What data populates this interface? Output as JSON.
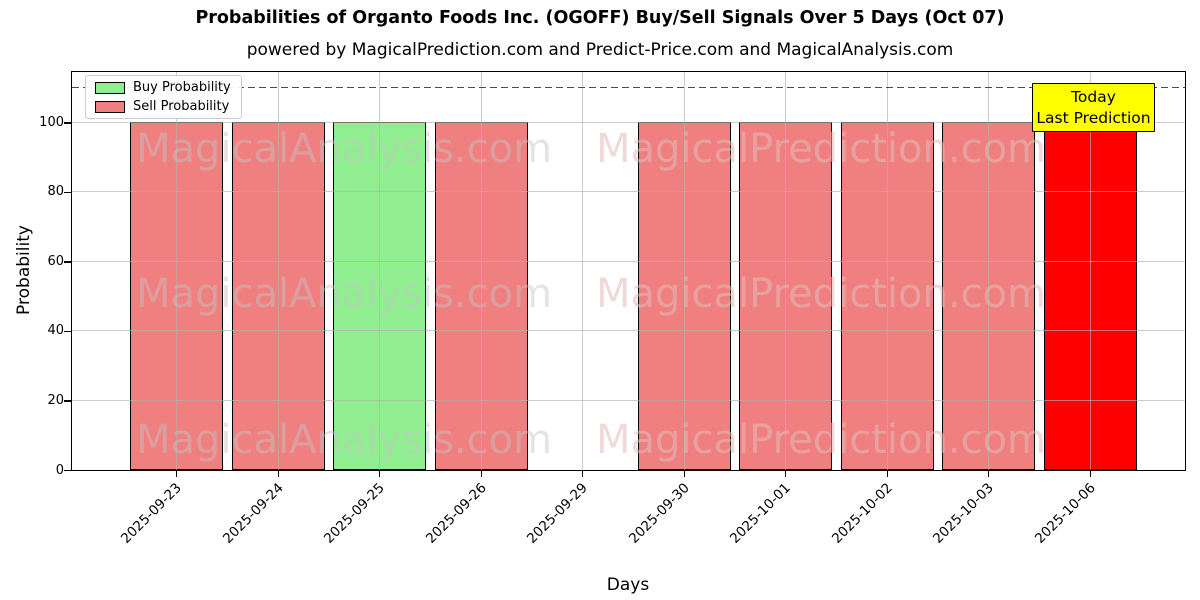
{
  "title": "Probabilities of Organto Foods Inc. (OGOFF) Buy/Sell Signals Over 5 Days (Oct 07)",
  "subtitle": "powered by MagicalPrediction.com and Predict-Price.com and MagicalAnalysis.com",
  "colors": {
    "buy": "#90ee90",
    "sell": "#f08080",
    "today": "#ff0000",
    "annotation_bg": "#ffff00",
    "grid": "#b0b0b0",
    "dashed_line": "#4a4a4a"
  },
  "legend": {
    "items": [
      {
        "label": "Buy Probability",
        "color": "#90ee90"
      },
      {
        "label": "Sell Probability",
        "color": "#f08080"
      }
    ]
  },
  "annotation": {
    "line1": "Today",
    "line2": "Last Prediction"
  },
  "watermarks": {
    "left": "MagicalAnalysis.com",
    "right": "MagicalPrediction.com"
  },
  "y_axis": {
    "label": "Probability",
    "ticks": [
      0,
      20,
      40,
      60,
      80,
      100
    ]
  },
  "x_axis": {
    "label": "Days"
  },
  "chart_data": {
    "type": "bar",
    "title": "Probabilities of Organto Foods Inc. (OGOFF) Buy/Sell Signals Over 5 Days (Oct 07)",
    "xlabel": "Days",
    "ylabel": "Probability",
    "ylim": [
      0,
      115
    ],
    "grid": true,
    "legend_position": "upper left",
    "dashed_line_y": 110,
    "categories": [
      "2025-09-23",
      "2025-09-24",
      "2025-09-25",
      "2025-09-26",
      "2025-09-29",
      "2025-09-30",
      "2025-10-01",
      "2025-10-02",
      "2025-10-03",
      "2025-10-06"
    ],
    "series": [
      {
        "name": "Buy Probability",
        "color": "#90ee90",
        "values": [
          0,
          0,
          100,
          0,
          0,
          0,
          0,
          0,
          0,
          0
        ]
      },
      {
        "name": "Sell Probability",
        "color": "#f08080",
        "values": [
          100,
          100,
          0,
          100,
          0,
          100,
          100,
          100,
          100,
          100
        ]
      }
    ],
    "today_highlight": {
      "date": "2025-10-06",
      "color": "#ff0000",
      "value": 100
    }
  }
}
